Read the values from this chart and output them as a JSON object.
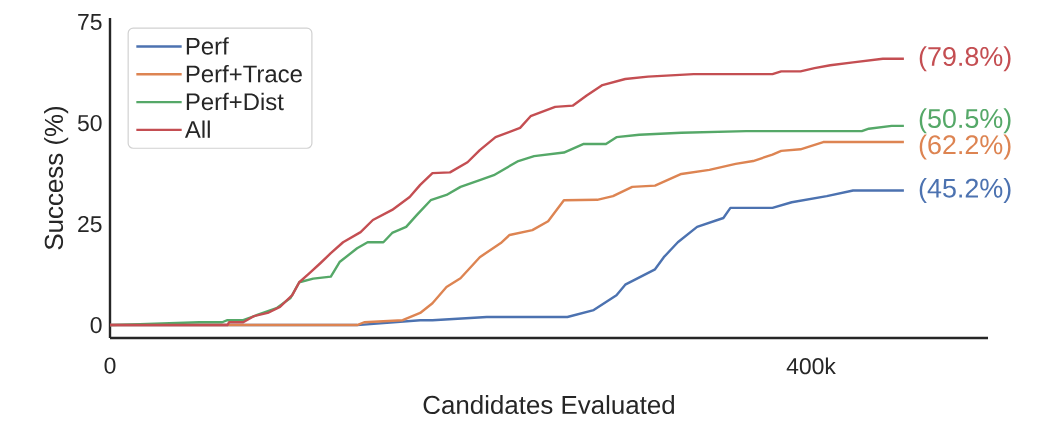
{
  "chart_data": {
    "type": "line",
    "xlabel": "Candidates Evaluated",
    "ylabel": "Success (%)",
    "xlim": [
      0,
      501000
    ],
    "ylim": [
      -3.2,
      76
    ],
    "xticks": [
      0,
      {
        "value": 400000,
        "label": "400k"
      }
    ],
    "yticks": [
      0,
      25,
      50,
      75
    ],
    "annotations": [
      "(45.2%)",
      "(62.2%)",
      "(50.5%)",
      "(79.8%)"
    ],
    "grid": false,
    "legend": "top left",
    "marker": "none",
    "line_style": "solid",
    "series": [
      {
        "name": "Perf",
        "color": "#4c72b0",
        "x": [
          0,
          141000,
          177000,
          184000,
          215000,
          261000,
          276000,
          289000,
          294000,
          311000,
          316000,
          324000,
          335000,
          350000,
          354000,
          378000,
          389000,
          409000,
          424000,
          453000
        ],
        "values": [
          0,
          0,
          1.2,
          1.2,
          2,
          2,
          3.7,
          7.4,
          10,
          13.8,
          16.8,
          20.5,
          24.3,
          26.5,
          29,
          29,
          30.4,
          31.9,
          33.3,
          33.3
        ]
      },
      {
        "name": "Perf+Trace",
        "color": "#dd8452",
        "x": [
          0,
          141000,
          145000,
          167000,
          177000,
          184000,
          192000,
          200000,
          211000,
          223000,
          228000,
          241000,
          250000,
          259000,
          278000,
          287000,
          298000,
          311000,
          326000,
          342000,
          357000,
          367000,
          378000,
          383000,
          394000,
          407000,
          453000
        ],
        "values": [
          0,
          0,
          0.7,
          1.2,
          3,
          5.4,
          9.4,
          11.6,
          16.8,
          20.3,
          22.3,
          23.5,
          25.7,
          30.9,
          31,
          31.9,
          34.2,
          34.5,
          37.4,
          38.4,
          39.9,
          40.6,
          42.2,
          43.1,
          43.5,
          45.3,
          45.3
        ]
      },
      {
        "name": "Perf+Dist",
        "color": "#55a868",
        "x": [
          0,
          51000,
          64000,
          67000,
          76000,
          84000,
          95000,
          103000,
          108000,
          116000,
          126000,
          131000,
          141000,
          147000,
          156000,
          161000,
          169000,
          175000,
          183000,
          192000,
          200000,
          211000,
          219000,
          233000,
          242000,
          259000,
          270000,
          283000,
          289000,
          302000,
          326000,
          363000,
          429000,
          433000,
          446000,
          453000
        ],
        "values": [
          0,
          0.7,
          0.7,
          1.2,
          1.2,
          2.5,
          4.2,
          6.7,
          10.6,
          11.5,
          12,
          15.6,
          19,
          20.5,
          20.5,
          22.8,
          24.3,
          27.2,
          30.9,
          32.2,
          34.2,
          35.9,
          37.1,
          40.6,
          41.8,
          42.7,
          44.8,
          44.8,
          46.5,
          47.1,
          47.6,
          48,
          48,
          48.6,
          49.3,
          49.3
        ]
      },
      {
        "name": "All",
        "color": "#c44e52",
        "x": [
          0,
          67000,
          68000,
          76000,
          82000,
          90000,
          97000,
          104000,
          108000,
          114000,
          120000,
          126000,
          133000,
          143000,
          150000,
          161000,
          171000,
          177000,
          184000,
          194000,
          204000,
          211000,
          220000,
          234000,
          240000,
          254000,
          264000,
          272000,
          281000,
          294000,
          307000,
          333000,
          378000,
          383000,
          394000,
          402000,
          411000,
          424000,
          441000,
          453000
        ],
        "values": [
          0,
          0,
          0.7,
          0.7,
          2.2,
          3,
          4.5,
          7.4,
          10.6,
          12.9,
          15.3,
          17.8,
          20.5,
          23,
          26,
          28.5,
          31.7,
          34.7,
          37.6,
          37.8,
          40.3,
          43.3,
          46.5,
          48.8,
          51.7,
          54,
          54.3,
          56.8,
          59.4,
          60.9,
          61.5,
          62.1,
          62.1,
          62.8,
          62.8,
          63.6,
          64.3,
          65,
          65.9,
          65.9
        ]
      }
    ]
  }
}
